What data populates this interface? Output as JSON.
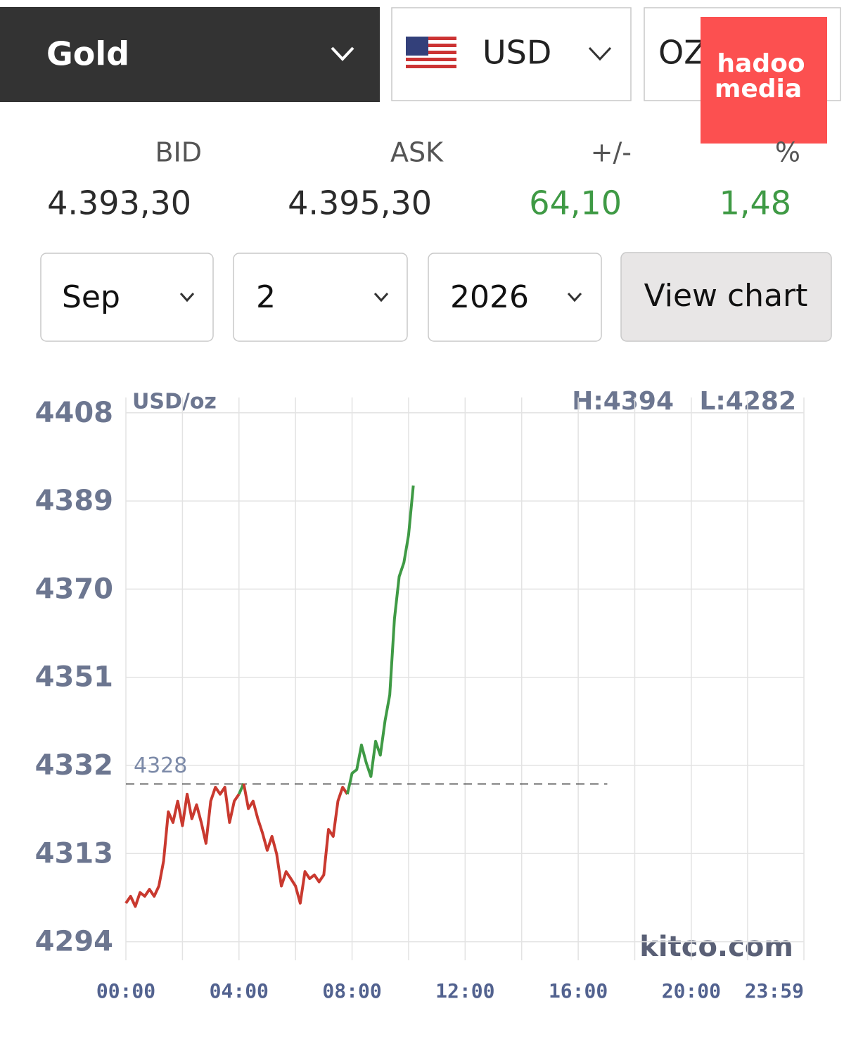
{
  "selector": {
    "metal": "Gold",
    "currency": "USD",
    "unit": "OZ"
  },
  "watermark": [
    "hadoo",
    "media"
  ],
  "quote": {
    "headers": [
      "BID",
      "ASK",
      "+/-",
      "%"
    ],
    "values": [
      "4.393,30",
      "4.395,30",
      "64,10",
      "1,48"
    ]
  },
  "date_picker": {
    "month": "Sep",
    "day": "2",
    "year": "2026",
    "button": "View chart"
  },
  "chart_data": {
    "type": "line",
    "unit_label": "USD/oz",
    "high": "H:4394",
    "low": "L:4282",
    "source": "kitco.com",
    "reference": {
      "value": 4328,
      "label": "4328"
    },
    "up_color": "#3f9a45",
    "down_color": "#c9392f",
    "x": [
      0,
      10,
      20,
      30,
      40,
      50,
      60,
      70,
      80,
      90,
      100,
      110,
      120,
      130,
      140,
      150,
      160,
      170,
      180,
      190,
      200,
      210,
      220,
      230,
      240,
      250,
      260,
      270,
      280,
      290,
      300,
      310,
      320,
      330,
      340,
      350,
      360,
      370,
      380,
      390,
      400,
      410,
      420,
      430,
      440,
      450,
      460,
      470,
      480,
      490,
      500,
      510,
      520,
      530,
      540,
      550,
      560,
      570,
      580,
      590,
      600,
      610
    ],
    "series": [
      {
        "values": [
          4302.3,
          4303.8,
          4301.6,
          4304.6,
          4303.8,
          4305.3,
          4303.8,
          4306.0,
          4311.4,
          4322.0,
          4319.7,
          4324.3,
          4319.0,
          4325.8,
          4320.5,
          4323.5,
          4319.7,
          4315.2,
          4324.3,
          4327.3,
          4325.8,
          4327.3,
          4319.7,
          4324.3,
          4325.8,
          4328.1,
          4322.7,
          4324.3,
          4320.5,
          4317.4,
          4313.7,
          4316.7,
          4312.9,
          4306.0,
          4309.1,
          4307.6,
          4306.0,
          4302.3,
          4309.1,
          4307.6,
          4308.4,
          4306.9,
          4308.4,
          4318.2,
          4316.7,
          4324.3,
          4327.3,
          4325.8,
          4330.3,
          4331.1,
          4336.4,
          4332.6,
          4329.6,
          4337.2,
          4334.2,
          4341.6,
          4347.2,
          4363.6,
          4372.7,
          4375.7,
          4381.7,
          4392.3
        ]
      }
    ],
    "xlim": [
      0,
      1439
    ],
    "ylim": [
      4290,
      4411.3
    ],
    "xticks": [
      {
        "value": 0,
        "label": "00:00"
      },
      {
        "value": 240,
        "label": "04:00"
      },
      {
        "value": 480,
        "label": "08:00"
      },
      {
        "value": 720,
        "label": "12:00"
      },
      {
        "value": 960,
        "label": "16:00"
      },
      {
        "value": 1200,
        "label": "20:00"
      },
      {
        "value": 1439,
        "label": "23:59"
      }
    ],
    "yticks": [
      4294,
      4313,
      4332,
      4351,
      4370,
      4389,
      4408
    ],
    "grid": true
  }
}
